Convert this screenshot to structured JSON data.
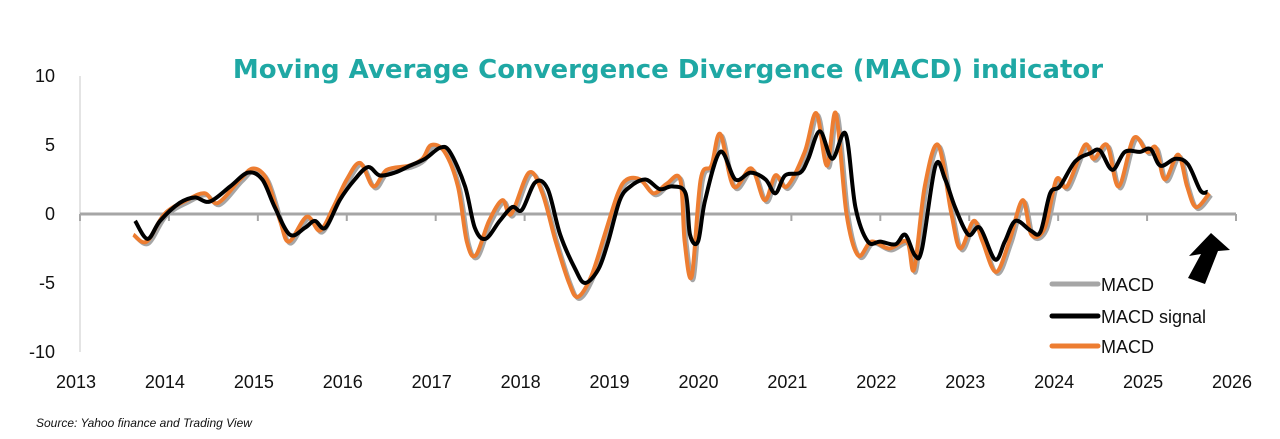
{
  "chart_data": {
    "type": "line",
    "title": "Moving Average Convergence Divergence (MACD) indicator",
    "source": "Source: Yahoo finance and Trading View",
    "xlim": [
      2013,
      2026
    ],
    "ylim": [
      -10,
      10
    ],
    "xticks": [
      "2013",
      "2014",
      "2015",
      "2016",
      "2017",
      "2018",
      "2019",
      "2020",
      "2021",
      "2022",
      "2023",
      "2024",
      "2025",
      "2026"
    ],
    "yticks": [
      "10",
      "5",
      "0",
      "-5",
      "-10"
    ],
    "yvals": [
      10,
      5,
      0,
      -5,
      -10
    ],
    "grid": false,
    "legend_placement": "bottom-right",
    "legend": [
      {
        "name": "MACD",
        "color": "#a6a6a6"
      },
      {
        "name": "MACD signal",
        "color": "#000000"
      },
      {
        "name": "MACD",
        "color": "#ed7d31"
      }
    ],
    "annotation": "arrow pointing up-left at latest values",
    "series": [
      {
        "name": "MACD",
        "color": "#ed7d31",
        "x": [
          2013.6,
          2013.75,
          2013.95,
          2014.2,
          2014.4,
          2014.55,
          2014.8,
          2014.95,
          2015.1,
          2015.25,
          2015.35,
          2015.55,
          2015.7,
          2015.85,
          2016.0,
          2016.15,
          2016.3,
          2016.45,
          2016.7,
          2016.85,
          2016.95,
          2017.1,
          2017.25,
          2017.35,
          2017.45,
          2017.6,
          2017.75,
          2017.85,
          2018.05,
          2018.2,
          2018.35,
          2018.5,
          2018.6,
          2018.75,
          2018.9,
          2019.05,
          2019.15,
          2019.3,
          2019.45,
          2019.6,
          2019.75,
          2019.8,
          2019.88,
          2019.98,
          2020.1,
          2020.2,
          2020.35,
          2020.55,
          2020.7,
          2020.82,
          2020.95,
          2021.15,
          2021.28,
          2021.4,
          2021.5,
          2021.62,
          2021.75,
          2021.9,
          2022.1,
          2022.3,
          2022.38,
          2022.5,
          2022.65,
          2022.8,
          2022.9,
          2023.05,
          2023.15,
          2023.3,
          2023.45,
          2023.6,
          2023.7,
          2023.85,
          2023.98,
          2024.1,
          2024.3,
          2024.4,
          2024.55,
          2024.68,
          2024.85,
          2025.0,
          2025.1,
          2025.2,
          2025.35,
          2025.45,
          2025.55,
          2025.7
        ],
        "y": [
          -1.5,
          -2.0,
          0,
          1.0,
          1.5,
          0.8,
          2.5,
          3.3,
          2.5,
          -0.5,
          -2.0,
          -0.2,
          -1.2,
          0.5,
          2.5,
          3.7,
          2.0,
          3.2,
          3.5,
          4.0,
          5.0,
          4.5,
          2.0,
          -2.0,
          -3.0,
          -0.5,
          1.0,
          0.0,
          3.0,
          1.5,
          -2.0,
          -5.0,
          -6.0,
          -4.5,
          -1.5,
          1.5,
          2.5,
          2.5,
          1.5,
          2.2,
          2.5,
          -2.0,
          -4.5,
          2.5,
          3.5,
          5.8,
          2.0,
          3.3,
          1.0,
          2.8,
          2.0,
          4.5,
          7.3,
          3.5,
          7.3,
          0.0,
          -3.0,
          -2.0,
          -2.5,
          -2.0,
          -4.0,
          2.0,
          5.0,
          0.0,
          -2.5,
          -0.5,
          -2.0,
          -4.2,
          -2.0,
          1.0,
          -1.5,
          -1.0,
          2.5,
          2.0,
          5.0,
          4.0,
          5.0,
          2.0,
          5.5,
          4.5,
          4.8,
          2.5,
          4.3,
          2.0,
          0.5,
          1.5
        ]
      },
      {
        "name": "MACD signal",
        "color": "#000000",
        "x": [
          2013.62,
          2013.76,
          2013.9,
          2014.12,
          2014.29,
          2014.46,
          2014.69,
          2014.89,
          2015.05,
          2015.19,
          2015.36,
          2015.53,
          2015.64,
          2015.76,
          2015.92,
          2016.09,
          2016.24,
          2016.37,
          2016.54,
          2016.71,
          2016.88,
          2017.05,
          2017.16,
          2017.33,
          2017.44,
          2017.56,
          2017.72,
          2017.86,
          2017.97,
          2018.12,
          2018.26,
          2018.4,
          2018.57,
          2018.68,
          2018.83,
          2018.94,
          2019.07,
          2019.19,
          2019.36,
          2019.52,
          2019.66,
          2019.81,
          2019.86,
          2019.95,
          2020.03,
          2020.2,
          2020.37,
          2020.54,
          2020.71,
          2020.82,
          2020.93,
          2021.1,
          2021.19,
          2021.32,
          2021.46,
          2021.61,
          2021.72,
          2021.86,
          2022.0,
          2022.17,
          2022.28,
          2022.39,
          2022.47,
          2022.62,
          2022.73,
          2022.84,
          2022.99,
          2023.12,
          2023.29,
          2023.4,
          2023.52,
          2023.69,
          2023.8,
          2023.91,
          2024.02,
          2024.19,
          2024.36,
          2024.47,
          2024.61,
          2024.75,
          2024.92,
          2025.04,
          2025.15,
          2025.32,
          2025.46,
          2025.6,
          2025.68
        ],
        "y": [
          -0.5,
          -1.8,
          -0.5,
          0.8,
          1.2,
          0.9,
          2.0,
          3.0,
          2.5,
          0.5,
          -1.5,
          -1.0,
          -0.5,
          -1.0,
          1.0,
          2.5,
          3.4,
          2.8,
          3.0,
          3.5,
          4.0,
          4.8,
          4.5,
          2.0,
          -1.0,
          -1.8,
          -0.5,
          0.5,
          0.3,
          2.3,
          1.8,
          -1.5,
          -4.0,
          -5.0,
          -4.0,
          -2.0,
          1.0,
          2.0,
          2.5,
          1.8,
          2.0,
          1.5,
          -1.5,
          -2.0,
          1.0,
          4.5,
          2.5,
          3.0,
          2.5,
          1.5,
          2.8,
          3.0,
          4.0,
          6.0,
          4.0,
          5.8,
          0.5,
          -2.0,
          -2.0,
          -2.2,
          -1.5,
          -3.0,
          -2.5,
          3.5,
          2.5,
          0.5,
          -1.5,
          -1.0,
          -3.3,
          -2.0,
          -0.5,
          -1.2,
          -1.3,
          1.5,
          2.0,
          3.8,
          4.4,
          4.6,
          3.2,
          4.5,
          4.5,
          4.7,
          3.5,
          4.0,
          3.6,
          1.7,
          1.6
        ]
      }
    ]
  }
}
